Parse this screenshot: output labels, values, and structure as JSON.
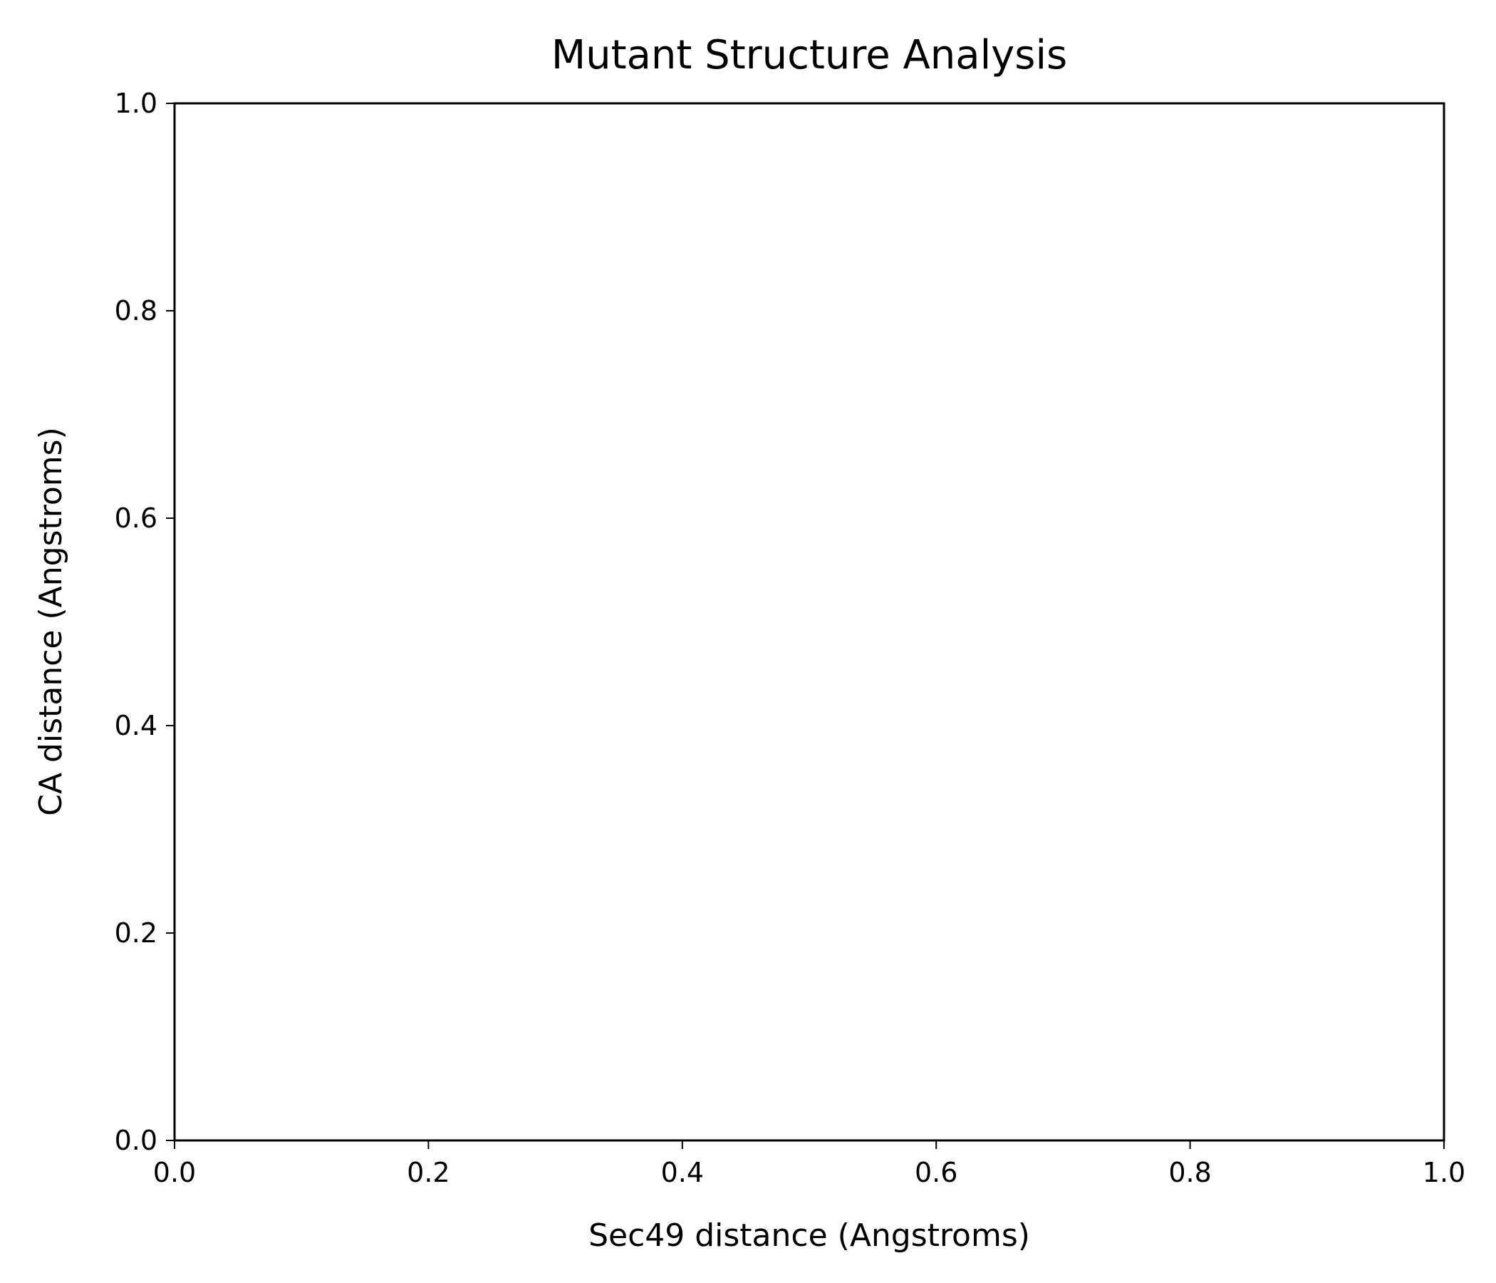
{
  "chart_data": {
    "type": "scatter",
    "title": "Mutant Structure Analysis",
    "xlabel": "Sec49 distance (Angstroms)",
    "ylabel": "CA distance (Angstroms)",
    "xlim": [
      0.0,
      1.0
    ],
    "ylim": [
      0.0,
      1.0
    ],
    "x_ticks": [
      "0.0",
      "0.2",
      "0.4",
      "0.6",
      "0.8",
      "1.0"
    ],
    "y_ticks": [
      "0.0",
      "0.2",
      "0.4",
      "0.6",
      "0.8",
      "1.0"
    ],
    "grid": false,
    "series": []
  },
  "colors": {
    "frame": "#000000",
    "background": "#ffffff"
  }
}
